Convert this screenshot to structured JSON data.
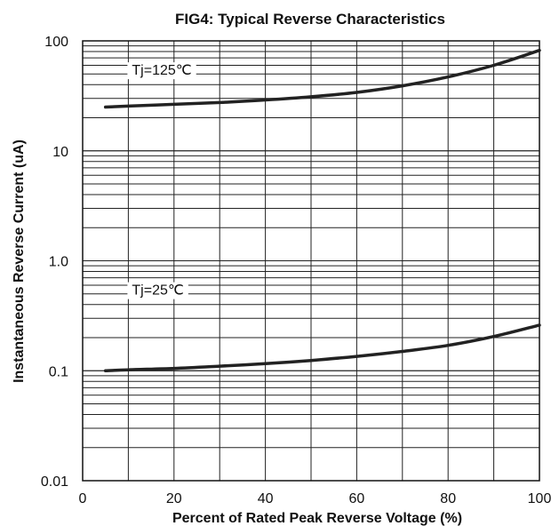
{
  "chart_data": {
    "type": "line",
    "title": "FIG4: Typical Reverse Characteristics",
    "xlabel": "Percent of Rated Peak Reverse Voltage  (%)",
    "ylabel": "Instantaneous Reverse Current (uA)",
    "xlim": [
      0,
      100
    ],
    "ylim": [
      0.01,
      100
    ],
    "yscale": "log",
    "grid": true,
    "x_ticks": [
      "0",
      "20",
      "40",
      "60",
      "80",
      "100"
    ],
    "y_ticks": [
      "0.01",
      "0.1",
      "1.0",
      "10",
      "100"
    ],
    "series": [
      {
        "name": "Tj=125℃",
        "x": [
          5,
          10,
          20,
          30,
          40,
          50,
          60,
          70,
          80,
          90,
          100
        ],
        "y": [
          25,
          25.5,
          26.5,
          27.5,
          29,
          31,
          34,
          39,
          47,
          60,
          82
        ]
      },
      {
        "name": "Tj=25℃",
        "x": [
          5,
          10,
          20,
          30,
          40,
          50,
          60,
          70,
          80,
          90,
          100
        ],
        "y": [
          0.1,
          0.102,
          0.105,
          0.11,
          0.116,
          0.124,
          0.135,
          0.15,
          0.17,
          0.205,
          0.26
        ]
      }
    ]
  }
}
